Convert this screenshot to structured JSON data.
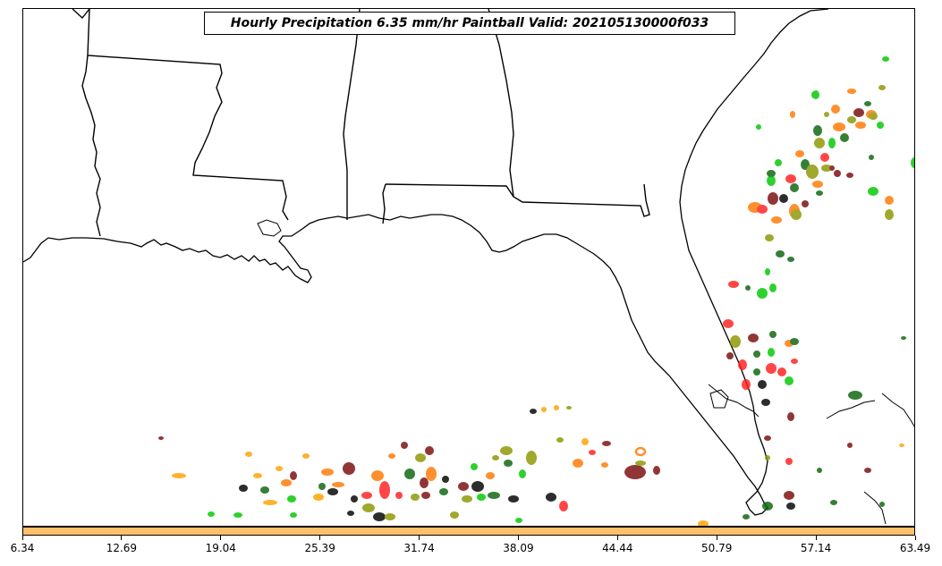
{
  "title": "Hourly Precipitation 6.35 mm/hr Paintball Valid: 202105130000f033",
  "colorbar": {
    "fill_color": "#ffc06a",
    "ticks": [
      "6.34",
      "12.69",
      "19.04",
      "25.39",
      "31.74",
      "38.09",
      "44.44",
      "50.79",
      "57.14",
      "63.49"
    ]
  },
  "paintball_colors": {
    "green": "#00c800",
    "dark_green": "#0a640a",
    "olive": "#8c9600",
    "red": "#ff1e1e",
    "dark_red": "#780a0a",
    "orange": "#ff7800",
    "amber": "#ffa000",
    "black": "#000000"
  },
  "map_layers": [
    "coastlines",
    "state-borders"
  ]
}
